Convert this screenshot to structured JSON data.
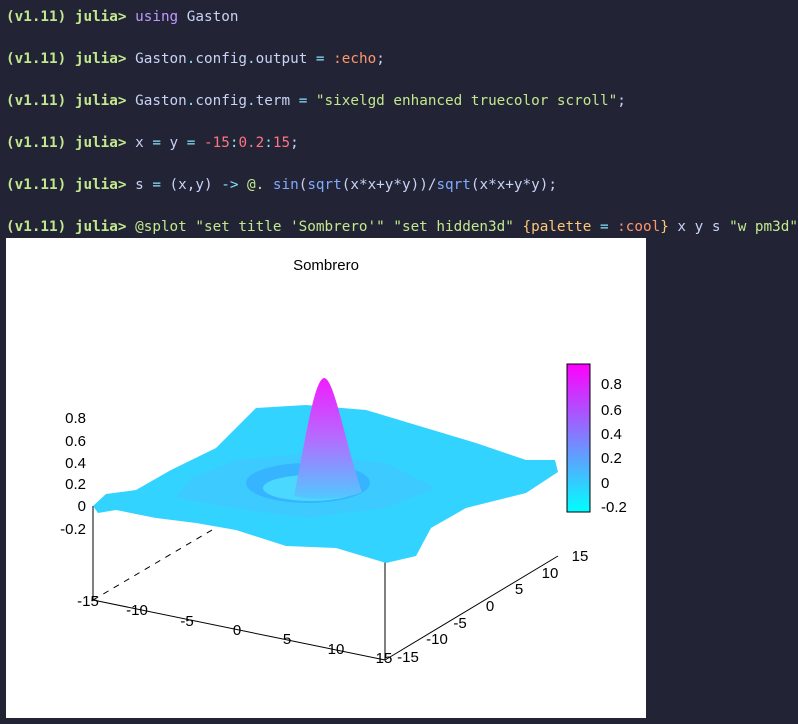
{
  "terminal": {
    "prompt": "(v1.11) julia>",
    "lines": [
      [
        {
          "text": "using",
          "color": "#c099ff"
        },
        {
          "text": " Gaston",
          "color": "#c8d3f5"
        }
      ],
      [
        {
          "text": "Gaston",
          "color": "#c8d3f5"
        },
        {
          "text": ".",
          "color": "#86e1fc"
        },
        {
          "text": "config",
          "color": "#c8d3f5"
        },
        {
          "text": ".",
          "color": "#86e1fc"
        },
        {
          "text": "output ",
          "color": "#c8d3f5"
        },
        {
          "text": "=",
          "color": "#86e1fc"
        },
        {
          "text": " :echo",
          "color": "#ff966c"
        },
        {
          "text": ";",
          "color": "#c8d3f5"
        }
      ],
      [
        {
          "text": "Gaston",
          "color": "#c8d3f5"
        },
        {
          "text": ".",
          "color": "#86e1fc"
        },
        {
          "text": "config",
          "color": "#c8d3f5"
        },
        {
          "text": ".",
          "color": "#86e1fc"
        },
        {
          "text": "term ",
          "color": "#c8d3f5"
        },
        {
          "text": "=",
          "color": "#86e1fc"
        },
        {
          "text": " \"sixelgd enhanced truecolor scroll\"",
          "color": "#c3e88d"
        },
        {
          "text": ";",
          "color": "#c8d3f5"
        }
      ],
      [
        {
          "text": "x ",
          "color": "#c8d3f5"
        },
        {
          "text": "=",
          "color": "#86e1fc"
        },
        {
          "text": " y ",
          "color": "#c8d3f5"
        },
        {
          "text": "=",
          "color": "#86e1fc"
        },
        {
          "text": " -15",
          "color": "#ff757f"
        },
        {
          "text": ":",
          "color": "#86e1fc"
        },
        {
          "text": "0.2",
          "color": "#ff757f"
        },
        {
          "text": ":",
          "color": "#86e1fc"
        },
        {
          "text": "15",
          "color": "#ff757f"
        },
        {
          "text": ";",
          "color": "#c8d3f5"
        }
      ],
      [
        {
          "text": "s ",
          "color": "#c8d3f5"
        },
        {
          "text": "=",
          "color": "#86e1fc"
        },
        {
          "text": " (x,y) ",
          "color": "#c8d3f5"
        },
        {
          "text": "->",
          "color": "#86e1fc"
        },
        {
          "text": " @.",
          "color": "#c3e88d"
        },
        {
          "text": " sin",
          "color": "#82aaff"
        },
        {
          "text": "(",
          "color": "#c8d3f5"
        },
        {
          "text": "sqrt",
          "color": "#82aaff"
        },
        {
          "text": "(x*x+y*y))/",
          "color": "#c8d3f5"
        },
        {
          "text": "sqrt",
          "color": "#82aaff"
        },
        {
          "text": "(x*x+y*y);",
          "color": "#c8d3f5"
        }
      ],
      [
        {
          "text": "@splot",
          "color": "#c3e88d"
        },
        {
          "text": " \"set title 'Sombrero'\" \"set hidden3d\" ",
          "color": "#c3e88d"
        },
        {
          "text": "{palette ",
          "color": "#ffc777"
        },
        {
          "text": "=",
          "color": "#86e1fc"
        },
        {
          "text": " :cool",
          "color": "#ff966c"
        },
        {
          "text": "}",
          "color": "#ffc777"
        },
        {
          "text": " x y s ",
          "color": "#c8d3f5"
        },
        {
          "text": "\"w pm3d\"",
          "color": "#c3e88d"
        }
      ]
    ]
  },
  "plot": {
    "title": "Sombrero",
    "z_ticks": [
      0.8,
      0.6,
      0.4,
      0.2,
      0,
      -0.2
    ],
    "colorbar_ticks": [
      0.8,
      0.6,
      0.4,
      0.2,
      0,
      -0.2
    ],
    "x_ticks": [
      -15,
      -10,
      -5,
      0,
      5,
      10,
      15
    ],
    "y_ticks": [
      -15,
      -10,
      -5,
      0,
      5,
      10,
      15
    ]
  }
}
